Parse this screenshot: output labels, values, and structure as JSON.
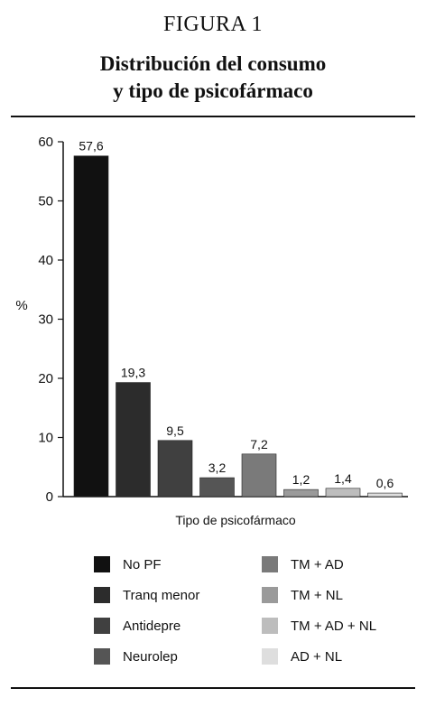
{
  "figure": {
    "label": "FIGURA 1",
    "title_line1": "Distribución del consumo",
    "title_line2": "y tipo de psicofármaco"
  },
  "chart_data": {
    "type": "bar",
    "categories": [
      "No PF",
      "Tranq menor",
      "Antidepre",
      "Neurolep",
      "TM + AD",
      "TM + NL",
      "TM + AD + NL",
      "AD + NL"
    ],
    "values": [
      57.6,
      19.3,
      9.5,
      3.2,
      7.2,
      1.2,
      1.4,
      0.6
    ],
    "value_labels": [
      "57,6",
      "19,3",
      "9,5",
      "3,2",
      "7,2",
      "1,2",
      "1,4",
      "0,6"
    ],
    "colors": [
      "#111111",
      "#2c2c2c",
      "#404040",
      "#555555",
      "#7a7a7a",
      "#9a9a9a",
      "#bdbdbd",
      "#dedede"
    ],
    "xlabel": "Tipo de psicofármaco",
    "ylabel": "%",
    "ylim": [
      0,
      60
    ],
    "yticks": [
      0,
      10,
      20,
      30,
      40,
      50,
      60
    ],
    "grid": false,
    "legend_placement": "bottom"
  }
}
